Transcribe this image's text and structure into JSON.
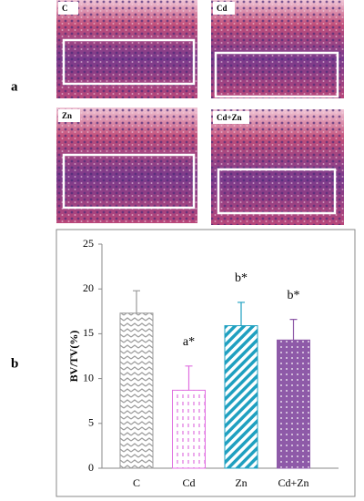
{
  "panel_a": {
    "label": "a",
    "images": [
      "C",
      "Cd",
      "Zn",
      "Cd+Zn"
    ]
  },
  "panel_b": {
    "label": "b"
  },
  "chart_data": {
    "type": "bar",
    "y_label": "BV/TV(%)",
    "categories": [
      "C",
      "Cd",
      "Zn",
      "Cd+Zn"
    ],
    "values": [
      17.3,
      8.7,
      15.9,
      14.3
    ],
    "errors": [
      2.5,
      2.7,
      2.6,
      2.3
    ],
    "annotations": [
      null,
      "a*",
      "b*",
      "b*"
    ],
    "colors": [
      "#9a9a9a",
      "#e070e0",
      "#1fa0c0",
      "#8e5aa8"
    ],
    "hatches": [
      "zigzag",
      "dashes",
      "stripes",
      "dots"
    ],
    "ylim": [
      0,
      25
    ],
    "yticks": [
      0,
      5,
      10,
      15,
      20,
      25
    ],
    "grid": false
  }
}
